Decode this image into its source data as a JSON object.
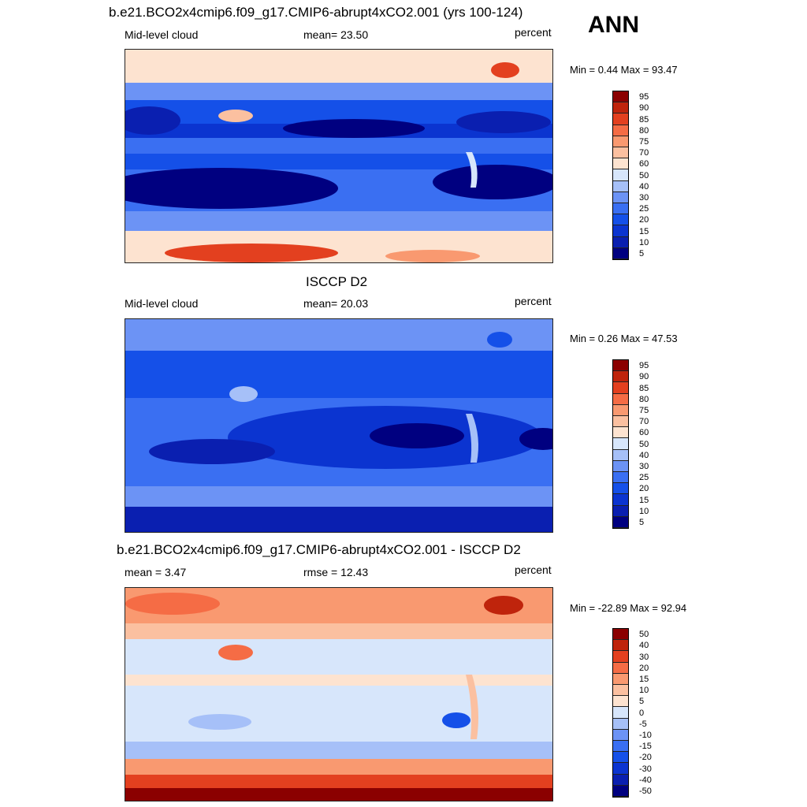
{
  "season": "ANN",
  "panels": [
    {
      "id": "model",
      "title": "b.e21.BCO2x4cmip6.f09_g17.CMIP6-abrupt4xCO2.001 (yrs 100-124)",
      "left_label": "Mid-level cloud",
      "center_label": "mean=  23.50",
      "units": "percent",
      "minmax": "Min =   0.44 Max =  93.47",
      "levels": [
        "5",
        "10",
        "15",
        "20",
        "25",
        "30",
        "40",
        "50",
        "60",
        "70",
        "75",
        "80",
        "85",
        "90",
        "95"
      ]
    },
    {
      "id": "obs",
      "title": "ISCCP D2",
      "left_label": "Mid-level cloud",
      "center_label": "mean=  20.03",
      "units": "percent",
      "minmax": "Min =   0.26 Max =  47.53",
      "levels": [
        "5",
        "10",
        "15",
        "20",
        "25",
        "30",
        "40",
        "50",
        "60",
        "70",
        "75",
        "80",
        "85",
        "90",
        "95"
      ]
    },
    {
      "id": "diff",
      "title": "b.e21.BCO2x4cmip6.f09_g17.CMIP6-abrupt4xCO2.001 - ISCCP D2",
      "left_label": "mean =   3.47",
      "center_label": "rmse =  12.43",
      "units": "percent",
      "minmax": "Min = -22.89 Max =  92.94",
      "levels": [
        "-50",
        "-40",
        "-30",
        "-20",
        "-15",
        "-10",
        "-5",
        "0",
        "5",
        "10",
        "15",
        "20",
        "30",
        "40",
        "50"
      ]
    }
  ],
  "colorbar_colors": [
    "#000080",
    "#0a1fb0",
    "#0b34d0",
    "#1550e8",
    "#3a6ff2",
    "#6c93f5",
    "#a6c0f8",
    "#d7e6fb",
    "#fde3d0",
    "#fbc0a0",
    "#f99970",
    "#f56c45",
    "#e3401f",
    "#bf240c",
    "#8b0000"
  ]
}
